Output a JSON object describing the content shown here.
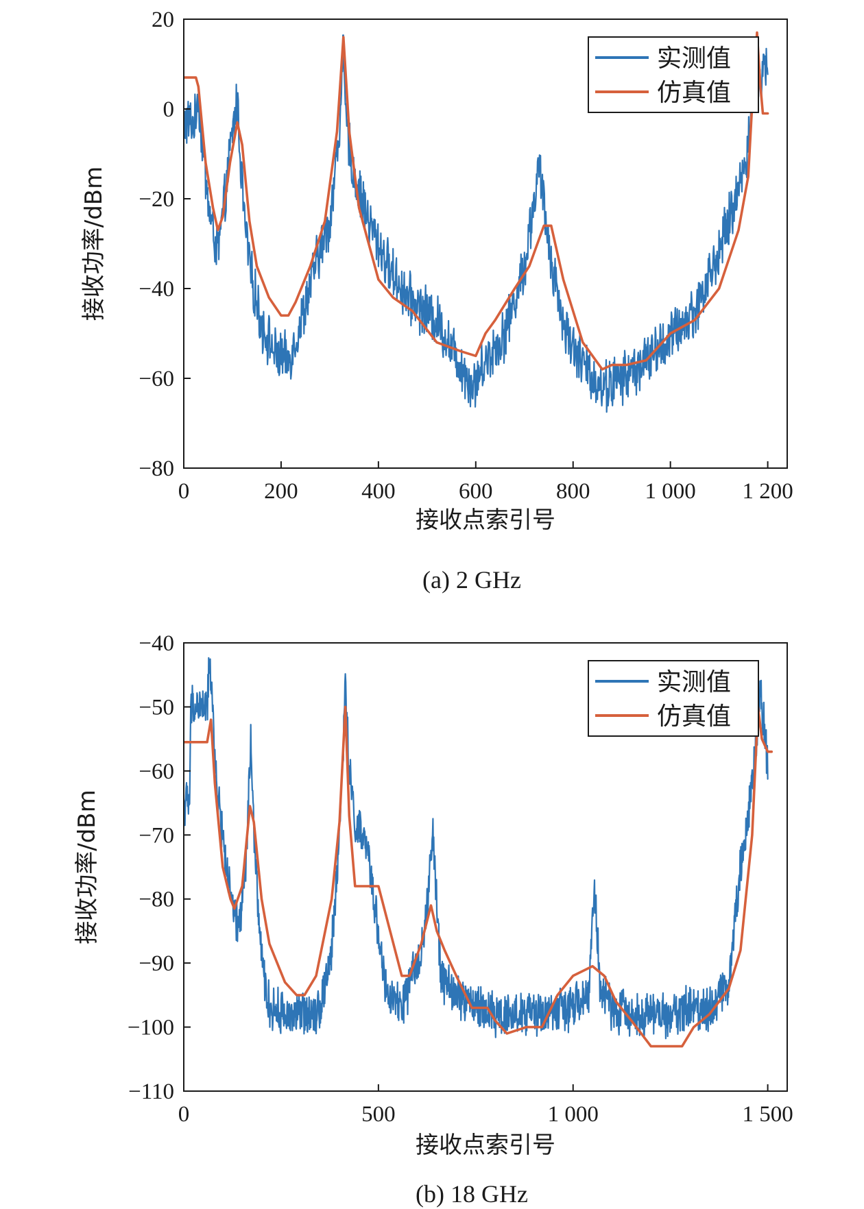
{
  "chart_data": [
    {
      "type": "line",
      "caption": "(a) 2 GHz",
      "xlabel": "接收点索引号",
      "ylabel": "接收功率/dBm",
      "xlim": [
        0,
        1240
      ],
      "ylim": [
        -80,
        20
      ],
      "xticks": [
        0,
        200,
        400,
        600,
        800,
        1000,
        1200
      ],
      "xtick_labels": [
        "0",
        "200",
        "400",
        "600",
        "800",
        "1 000",
        "1 200"
      ],
      "yticks": [
        -80,
        -60,
        -40,
        -20,
        0,
        20
      ],
      "ytick_labels": [
        "−80",
        "−60",
        "−40",
        "−20",
        "0",
        "20"
      ],
      "grid": false,
      "legend_position": "top-right",
      "series": [
        {
          "name": "实测值",
          "color": "#2E75B6",
          "noise": 5,
          "x": [
            0,
            25,
            28,
            40,
            55,
            70,
            85,
            100,
            110,
            115,
            125,
            140,
            160,
            190,
            215,
            240,
            270,
            300,
            320,
            327,
            335,
            350,
            380,
            420,
            460,
            520,
            560,
            595,
            620,
            660,
            700,
            730,
            750,
            780,
            820,
            860,
            900,
            950,
            1000,
            1050,
            1100,
            1140,
            1160,
            1170,
            1175,
            1180,
            1190,
            1200
          ],
          "y": [
            -3,
            -3,
            5,
            -10,
            -25,
            -32,
            -20,
            -5,
            2,
            -8,
            -25,
            -38,
            -48,
            -55,
            -56,
            -48,
            -35,
            -25,
            -5,
            13,
            -5,
            -15,
            -25,
            -35,
            -42,
            -47,
            -55,
            -62,
            -56,
            -50,
            -35,
            -13,
            -30,
            -48,
            -57,
            -62,
            -60,
            -56,
            -51,
            -45,
            -32,
            -18,
            -8,
            8,
            12,
            5,
            8,
            10
          ]
        },
        {
          "name": "仿真值",
          "color": "#D6603C",
          "x": [
            0,
            25,
            30,
            45,
            60,
            70,
            80,
            95,
            110,
            120,
            135,
            150,
            175,
            200,
            215,
            230,
            260,
            290,
            315,
            328,
            340,
            360,
            380,
            400,
            430,
            470,
            520,
            570,
            600,
            620,
            640,
            680,
            710,
            740,
            755,
            780,
            820,
            860,
            880,
            910,
            950,
            1000,
            1050,
            1100,
            1140,
            1160,
            1170,
            1178,
            1185,
            1190,
            1200
          ],
          "y": [
            7,
            7,
            5,
            -12,
            -22,
            -27,
            -24,
            -12,
            -3,
            -8,
            -25,
            -35,
            -42,
            -46,
            -46,
            -43,
            -35,
            -25,
            -5,
            16,
            -5,
            -22,
            -30,
            -38,
            -42,
            -45,
            -52,
            -54,
            -55,
            -50,
            -47,
            -40,
            -35,
            -26,
            -26,
            -38,
            -52,
            -58,
            -57,
            -57,
            -56,
            -50,
            -47,
            -40,
            -27,
            -15,
            5,
            17,
            5,
            -1,
            -1
          ]
        }
      ]
    },
    {
      "type": "line",
      "caption": "(b) 18 GHz",
      "xlabel": "接收点索引号",
      "ylabel": "接收功率/dBm",
      "xlim": [
        0,
        1550
      ],
      "ylim": [
        -110,
        -40
      ],
      "xticks": [
        0,
        500,
        1000,
        1500
      ],
      "xtick_labels": [
        "0",
        "500",
        "1 000",
        "1 500"
      ],
      "yticks": [
        -110,
        -100,
        -90,
        -80,
        -70,
        -60,
        -50,
        -40
      ],
      "ytick_labels": [
        "−110",
        "−100",
        "−90",
        "−80",
        "−70",
        "−60",
        "−50",
        "−40"
      ],
      "grid": false,
      "legend_position": "top-right",
      "series": [
        {
          "name": "实测值",
          "color": "#2E75B6",
          "noise": 3,
          "x": [
            0,
            15,
            18,
            60,
            65,
            72,
            80,
            100,
            120,
            140,
            160,
            172,
            180,
            200,
            220,
            260,
            300,
            350,
            380,
            400,
            415,
            425,
            440,
            470,
            500,
            520,
            560,
            600,
            620,
            640,
            660,
            700,
            760,
            800,
            900,
            1000,
            1040,
            1055,
            1070,
            1100,
            1150,
            1200,
            1250,
            1300,
            1350,
            1400,
            1430,
            1460,
            1470,
            1480,
            1490,
            1500
          ],
          "y": [
            -65,
            -65,
            -50,
            -50,
            -45,
            -45,
            -60,
            -70,
            -80,
            -85,
            -75,
            -55,
            -70,
            -90,
            -97,
            -98,
            -98,
            -97,
            -88,
            -70,
            -47,
            -60,
            -68,
            -72,
            -85,
            -95,
            -97,
            -90,
            -85,
            -70,
            -92,
            -95,
            -97,
            -98,
            -98,
            -97,
            -95,
            -78,
            -94,
            -97,
            -98,
            -98,
            -98,
            -97,
            -97,
            -93,
            -75,
            -62,
            -55,
            -47,
            -52,
            -60
          ]
        },
        {
          "name": "仿真值",
          "color": "#D6603C",
          "x": [
            0,
            60,
            70,
            80,
            100,
            120,
            130,
            150,
            170,
            180,
            200,
            220,
            260,
            290,
            310,
            340,
            380,
            400,
            415,
            425,
            440,
            460,
            500,
            530,
            560,
            580,
            610,
            635,
            650,
            670,
            700,
            740,
            780,
            800,
            830,
            880,
            920,
            960,
            1000,
            1050,
            1080,
            1110,
            1150,
            1200,
            1230,
            1280,
            1310,
            1350,
            1400,
            1430,
            1460,
            1475,
            1485,
            1500,
            1510
          ],
          "y": [
            -55.5,
            -55.5,
            -52,
            -62,
            -75,
            -80,
            -81.5,
            -78,
            -65.5,
            -68,
            -80,
            -87,
            -93,
            -95,
            -95,
            -92,
            -80,
            -68,
            -50,
            -67,
            -78,
            -78,
            -78,
            -85,
            -92,
            -92,
            -87,
            -81,
            -85,
            -88,
            -92,
            -97,
            -97,
            -99,
            -101,
            -100,
            -100,
            -95,
            -92,
            -90.5,
            -92,
            -96,
            -99,
            -103,
            -103,
            -103,
            -100,
            -98,
            -94,
            -88,
            -70,
            -50,
            -55,
            -57,
            -57
          ]
        }
      ]
    }
  ]
}
